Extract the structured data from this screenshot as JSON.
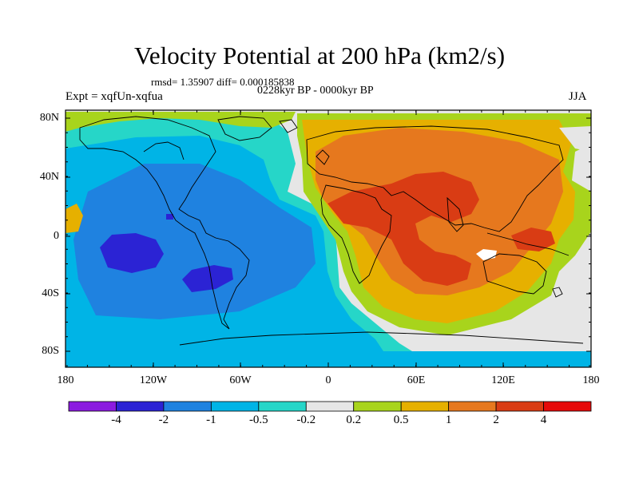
{
  "title": "Velocity Potential at 200 hPa (km2/s)",
  "stats": "rmsd= 1.35907 diff= 0.000185838",
  "period": "0228kyr BP - 0000kyr BP",
  "expt": "Expt = xqfUn-xqfua",
  "season": "JJA",
  "lat_labels": [
    "80N",
    "40N",
    "0",
    "40S",
    "80S"
  ],
  "lon_labels": [
    "180",
    "120W",
    "60W",
    "0",
    "60E",
    "120E",
    "180"
  ],
  "colorbar": {
    "labels": [
      "-4",
      "-2",
      "-1",
      "-0.5",
      "-0.2",
      "0.2",
      "0.5",
      "1",
      "2",
      "4"
    ],
    "colors": [
      "#8b1be0",
      "#2b23d4",
      "#1f82e0",
      "#00b4e6",
      "#26d6c8",
      "#e6e6e6",
      "#a8d41c",
      "#e6b000",
      "#e6781e",
      "#d93c14",
      "#e60a0a"
    ]
  },
  "map_colors": {
    "coast": "#000000"
  }
}
